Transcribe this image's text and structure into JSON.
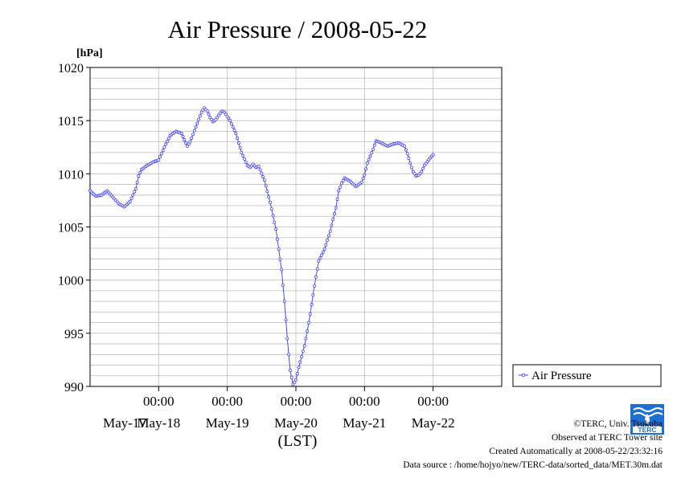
{
  "chart_data": {
    "type": "line",
    "title": "Air Pressure / 2008-05-22",
    "ylabel": "[hPa]",
    "xlabel": "(LST)",
    "ylim": [
      990,
      1020
    ],
    "yticks": [
      990,
      995,
      1000,
      1005,
      1010,
      1015,
      1020
    ],
    "xrange_hours": [
      0,
      144
    ],
    "xticks": [
      {
        "hour": 24,
        "time_label": "00:00",
        "date_label": "May-18"
      },
      {
        "hour": 48,
        "time_label": "00:00",
        "date_label": "May-19"
      },
      {
        "hour": 72,
        "time_label": "00:00",
        "date_label": "May-20"
      },
      {
        "hour": 96,
        "time_label": "00:00",
        "date_label": "May-21"
      },
      {
        "hour": 120,
        "time_label": "00:00",
        "date_label": "May-22"
      }
    ],
    "first_date_label": "May-17",
    "grid": true,
    "legend_position": "right",
    "series": [
      {
        "name": "Air Pressure",
        "color": "#3333ff",
        "x_step_hours": 0.5,
        "anchors": [
          [
            0,
            1008.4
          ],
          [
            2,
            1007.9
          ],
          [
            4,
            1008.0
          ],
          [
            6,
            1008.4
          ],
          [
            8,
            1007.8
          ],
          [
            10,
            1007.2
          ],
          [
            12,
            1006.9
          ],
          [
            14,
            1007.4
          ],
          [
            16,
            1008.6
          ],
          [
            17,
            1009.8
          ],
          [
            18,
            1010.4
          ],
          [
            20,
            1010.8
          ],
          [
            22,
            1011.1
          ],
          [
            24,
            1011.3
          ],
          [
            26,
            1012.5
          ],
          [
            28,
            1013.6
          ],
          [
            30,
            1014.0
          ],
          [
            32,
            1013.8
          ],
          [
            34,
            1012.6
          ],
          [
            35,
            1013.0
          ],
          [
            37,
            1014.4
          ],
          [
            39,
            1015.8
          ],
          [
            40,
            1016.2
          ],
          [
            41,
            1015.9
          ],
          [
            42,
            1015.3
          ],
          [
            43,
            1014.9
          ],
          [
            44,
            1015.1
          ],
          [
            45,
            1015.5
          ],
          [
            46,
            1015.9
          ],
          [
            47,
            1015.8
          ],
          [
            49,
            1015.0
          ],
          [
            51,
            1013.8
          ],
          [
            53,
            1012.0
          ],
          [
            55,
            1010.8
          ],
          [
            56,
            1010.6
          ],
          [
            57,
            1010.9
          ],
          [
            58,
            1010.6
          ],
          [
            59,
            1010.7
          ],
          [
            61,
            1009.4
          ],
          [
            63,
            1007.3
          ],
          [
            65,
            1004.8
          ],
          [
            67,
            1001.0
          ],
          [
            68,
            998.0
          ],
          [
            69,
            994.5
          ],
          [
            70,
            991.5
          ],
          [
            71,
            990.2
          ],
          [
            72,
            990.6
          ],
          [
            73,
            991.8
          ],
          [
            74,
            992.8
          ],
          [
            75,
            993.8
          ],
          [
            76,
            995.2
          ],
          [
            77,
            996.8
          ],
          [
            78,
            998.6
          ],
          [
            79,
            1000.3
          ],
          [
            80,
            1001.8
          ],
          [
            82,
            1002.9
          ],
          [
            84,
            1004.6
          ],
          [
            86,
            1006.8
          ],
          [
            87,
            1008.4
          ],
          [
            88,
            1009.1
          ],
          [
            89,
            1009.6
          ],
          [
            91,
            1009.3
          ],
          [
            93,
            1008.8
          ],
          [
            95,
            1009.2
          ],
          [
            96,
            1009.9
          ],
          [
            97,
            1011.0
          ],
          [
            99,
            1012.3
          ],
          [
            100,
            1013.1
          ],
          [
            101,
            1013.0
          ],
          [
            102,
            1012.9
          ],
          [
            104,
            1012.6
          ],
          [
            106,
            1012.8
          ],
          [
            108,
            1012.9
          ],
          [
            110,
            1012.6
          ],
          [
            111,
            1011.9
          ],
          [
            112,
            1011.0
          ],
          [
            113,
            1010.2
          ],
          [
            114,
            1009.8
          ],
          [
            115,
            1009.9
          ],
          [
            116,
            1010.2
          ],
          [
            117,
            1010.8
          ],
          [
            119,
            1011.5
          ],
          [
            120,
            1011.8
          ]
        ]
      }
    ]
  },
  "credits": {
    "copyright": "©TERC, Univ. Tsukuba",
    "observed": "Observed at TERC Tower site",
    "created": "Created Automatically at 2008-05-22/23:32:16",
    "source": "Data source : /home/hojyo/new/TERC-data/sorted_data/MET.30m.dat"
  },
  "logo": {
    "text": "TERC",
    "color": "#1f6fd0"
  }
}
